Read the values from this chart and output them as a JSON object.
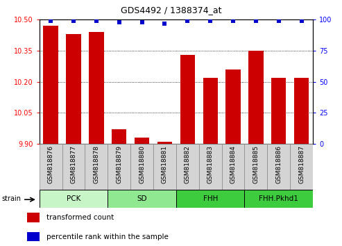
{
  "title": "GDS4492 / 1388374_at",
  "samples": [
    "GSM818876",
    "GSM818877",
    "GSM818878",
    "GSM818879",
    "GSM818880",
    "GSM818881",
    "GSM818882",
    "GSM818883",
    "GSM818884",
    "GSM818885",
    "GSM818886",
    "GSM818887"
  ],
  "bar_values": [
    10.47,
    10.43,
    10.44,
    9.97,
    9.93,
    9.91,
    10.33,
    10.22,
    10.26,
    10.35,
    10.22,
    10.22
  ],
  "percentile_values": [
    99,
    99,
    99,
    98,
    98,
    97,
    99,
    99,
    99,
    99,
    99,
    99
  ],
  "bar_color": "#cc0000",
  "dot_color": "#0000cc",
  "ylim_left": [
    9.9,
    10.5
  ],
  "ylim_right": [
    0,
    100
  ],
  "yticks_left": [
    9.9,
    10.05,
    10.2,
    10.35,
    10.5
  ],
  "yticks_right": [
    0,
    25,
    50,
    75,
    100
  ],
  "groups": [
    {
      "label": "PCK",
      "start": 0,
      "end": 3,
      "color": "#c8f5c8"
    },
    {
      "label": "SD",
      "start": 3,
      "end": 6,
      "color": "#90e890"
    },
    {
      "label": "FHH",
      "start": 6,
      "end": 9,
      "color": "#3dcc3d"
    },
    {
      "label": "FHH.Pkhd1",
      "start": 9,
      "end": 12,
      "color": "#3dcc3d"
    }
  ],
  "xtick_bg_color": "#d4d4d4",
  "strain_label": "strain",
  "legend_bar_label": "transformed count",
  "legend_dot_label": "percentile rank within the sample"
}
